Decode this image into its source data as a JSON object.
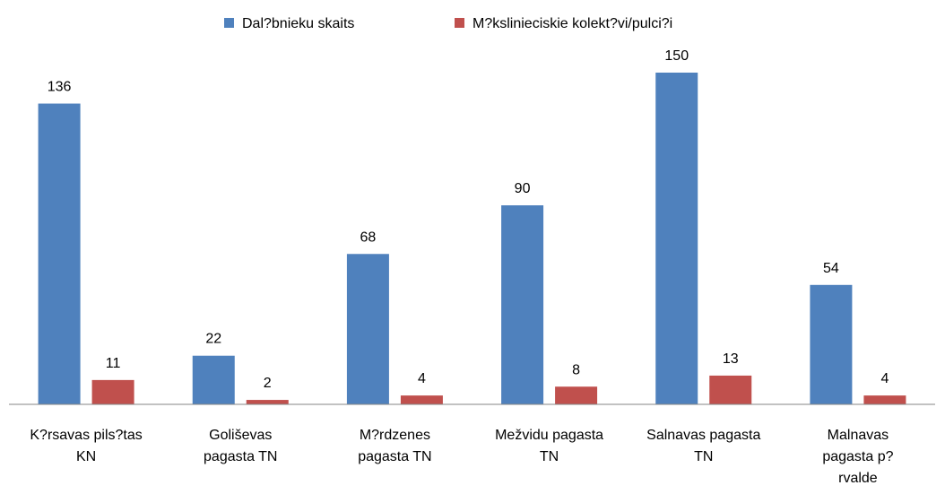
{
  "chart_data": {
    "type": "bar",
    "categories": [
      "K?rsavas pils?tas KN",
      "Goliševas pagasta TN",
      "M?rdzenes pagasta TN",
      "Mežvidu pagasta TN",
      "Salnavas pagasta TN",
      "Malnavas pagasta p?rvalde"
    ],
    "series": [
      {
        "name": "Dal?bnieku skaits",
        "color": "#4f81bd",
        "values": [
          136,
          22,
          68,
          90,
          150,
          54
        ]
      },
      {
        "name": "M?kslinieciskie kolekt?vi/pulci?i",
        "color": "#c0504d",
        "values": [
          11,
          2,
          4,
          8,
          13,
          4
        ]
      }
    ],
    "ylim": [
      0,
      150
    ],
    "legend": "top"
  }
}
